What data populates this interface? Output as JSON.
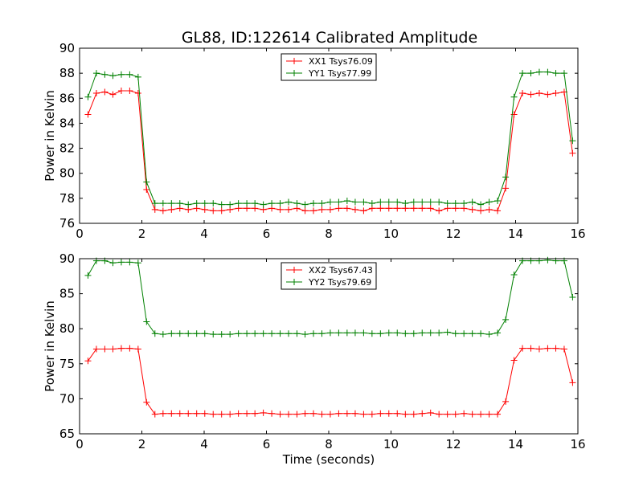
{
  "chart_data": [
    {
      "type": "line",
      "title": "GL88, ID:122614 Calibrated Amplitude",
      "xlabel": "",
      "ylabel": "Power in Kelvin",
      "xlim": [
        0,
        16
      ],
      "ylim": [
        76,
        90
      ],
      "xticks": [
        0,
        2,
        4,
        6,
        8,
        10,
        12,
        14,
        16
      ],
      "yticks": [
        76,
        78,
        80,
        82,
        84,
        86,
        88,
        90
      ],
      "grid": false,
      "legend_position": "top-center",
      "marker": "plus",
      "x": [
        0.27,
        0.54,
        0.81,
        1.07,
        1.34,
        1.61,
        1.88,
        2.15,
        2.42,
        2.68,
        2.95,
        3.22,
        3.49,
        3.76,
        4.02,
        4.29,
        4.56,
        4.83,
        5.1,
        5.37,
        5.63,
        5.9,
        6.17,
        6.44,
        6.71,
        6.98,
        7.24,
        7.51,
        7.78,
        8.05,
        8.32,
        8.59,
        8.85,
        9.12,
        9.39,
        9.66,
        9.93,
        10.2,
        10.46,
        10.73,
        11.0,
        11.27,
        11.54,
        11.81,
        12.07,
        12.34,
        12.61,
        12.88,
        13.15,
        13.42,
        13.68,
        13.95,
        14.22,
        14.49,
        14.76,
        15.03,
        15.29,
        15.56,
        15.83
      ],
      "series": [
        {
          "name": "XX1 Tsys76.09",
          "color": "#ff0000",
          "values": [
            84.7,
            86.4,
            86.5,
            86.3,
            86.6,
            86.6,
            86.4,
            78.7,
            77.1,
            77.0,
            77.1,
            77.2,
            77.1,
            77.2,
            77.1,
            77.0,
            77.0,
            77.1,
            77.2,
            77.2,
            77.2,
            77.1,
            77.2,
            77.1,
            77.1,
            77.2,
            77.0,
            77.0,
            77.1,
            77.1,
            77.2,
            77.2,
            77.1,
            77.0,
            77.2,
            77.2,
            77.2,
            77.2,
            77.2,
            77.2,
            77.2,
            77.2,
            77.0,
            77.2,
            77.2,
            77.2,
            77.1,
            77.0,
            77.1,
            77.0,
            78.8,
            84.7,
            86.4,
            86.3,
            86.4,
            86.3,
            86.4,
            86.5,
            81.6
          ]
        },
        {
          "name": "YY1 Tsys77.99",
          "color": "#008000",
          "values": [
            86.1,
            88.0,
            87.9,
            87.8,
            87.9,
            87.9,
            87.7,
            79.3,
            77.6,
            77.6,
            77.6,
            77.6,
            77.5,
            77.6,
            77.6,
            77.6,
            77.5,
            77.5,
            77.6,
            77.6,
            77.6,
            77.5,
            77.6,
            77.6,
            77.7,
            77.6,
            77.5,
            77.6,
            77.6,
            77.7,
            77.7,
            77.8,
            77.7,
            77.7,
            77.6,
            77.7,
            77.7,
            77.7,
            77.6,
            77.7,
            77.7,
            77.7,
            77.7,
            77.6,
            77.6,
            77.6,
            77.7,
            77.5,
            77.7,
            77.8,
            79.7,
            86.1,
            88.0,
            88.0,
            88.1,
            88.1,
            88.0,
            88.0,
            82.6
          ]
        }
      ]
    },
    {
      "type": "line",
      "title": "",
      "xlabel": "Time (seconds)",
      "ylabel": "Power in Kelvin",
      "xlim": [
        0,
        16
      ],
      "ylim": [
        65,
        90
      ],
      "xticks": [
        0,
        2,
        4,
        6,
        8,
        10,
        12,
        14,
        16
      ],
      "yticks": [
        65,
        70,
        75,
        80,
        85,
        90
      ],
      "grid": false,
      "legend_position": "top-center",
      "marker": "plus",
      "x": [
        0.27,
        0.54,
        0.81,
        1.07,
        1.34,
        1.61,
        1.88,
        2.15,
        2.42,
        2.68,
        2.95,
        3.22,
        3.49,
        3.76,
        4.02,
        4.29,
        4.56,
        4.83,
        5.1,
        5.37,
        5.63,
        5.9,
        6.17,
        6.44,
        6.71,
        6.98,
        7.24,
        7.51,
        7.78,
        8.05,
        8.32,
        8.59,
        8.85,
        9.12,
        9.39,
        9.66,
        9.93,
        10.2,
        10.46,
        10.73,
        11.0,
        11.27,
        11.54,
        11.81,
        12.07,
        12.34,
        12.61,
        12.88,
        13.15,
        13.42,
        13.68,
        13.95,
        14.22,
        14.49,
        14.76,
        15.03,
        15.29,
        15.56,
        15.83
      ],
      "series": [
        {
          "name": "XX2 Tsys67.43",
          "color": "#ff0000",
          "values": [
            75.4,
            77.1,
            77.1,
            77.1,
            77.2,
            77.2,
            77.1,
            69.5,
            67.8,
            67.9,
            67.9,
            67.9,
            67.9,
            67.9,
            67.9,
            67.8,
            67.8,
            67.8,
            67.9,
            67.9,
            67.9,
            68.0,
            67.9,
            67.8,
            67.8,
            67.8,
            67.9,
            67.9,
            67.8,
            67.8,
            67.9,
            67.9,
            67.9,
            67.8,
            67.8,
            67.9,
            67.9,
            67.9,
            67.8,
            67.8,
            67.9,
            68.0,
            67.8,
            67.8,
            67.8,
            67.9,
            67.8,
            67.8,
            67.8,
            67.8,
            69.6,
            75.5,
            77.2,
            77.2,
            77.1,
            77.2,
            77.2,
            77.1,
            72.3
          ]
        },
        {
          "name": "YY2 Tsys79.69",
          "color": "#008000",
          "values": [
            87.6,
            89.7,
            89.7,
            89.4,
            89.5,
            89.5,
            89.4,
            81.0,
            79.3,
            79.2,
            79.3,
            79.3,
            79.3,
            79.3,
            79.3,
            79.2,
            79.2,
            79.2,
            79.3,
            79.3,
            79.3,
            79.3,
            79.3,
            79.3,
            79.3,
            79.3,
            79.2,
            79.3,
            79.3,
            79.4,
            79.4,
            79.4,
            79.4,
            79.4,
            79.3,
            79.3,
            79.4,
            79.4,
            79.3,
            79.3,
            79.4,
            79.4,
            79.4,
            79.5,
            79.3,
            79.3,
            79.3,
            79.3,
            79.2,
            79.4,
            81.3,
            87.7,
            89.7,
            89.7,
            89.7,
            89.8,
            89.7,
            89.7,
            84.5
          ]
        }
      ]
    }
  ]
}
